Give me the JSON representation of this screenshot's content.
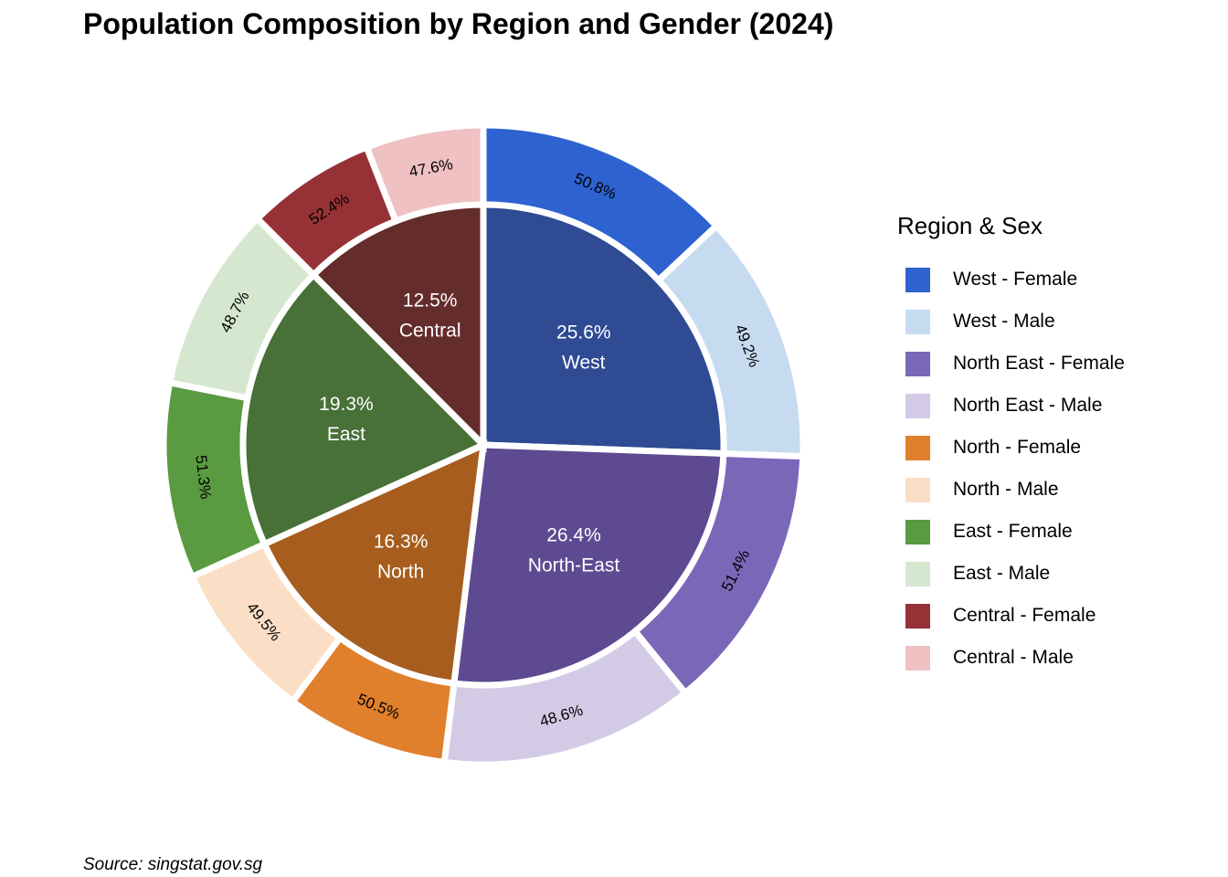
{
  "title": "Population Composition by Region and Gender (2024)",
  "caption": "Source: singstat.gov.sg",
  "chart_data": {
    "type": "pie",
    "subtype": "nested donut (sunburst)",
    "inner": {
      "slices": [
        {
          "region": "West",
          "percent": 25.6,
          "label_pct": "25.6%",
          "label_name": "West",
          "color": "#2E4B94"
        },
        {
          "region": "North-East",
          "percent": 26.4,
          "label_pct": "26.4%",
          "label_name": "North-East",
          "color": "#5E4A91"
        },
        {
          "region": "North",
          "percent": 16.3,
          "label_pct": "16.3%",
          "label_name": "North",
          "color": "#A65D1E"
        },
        {
          "region": "East",
          "percent": 19.3,
          "label_pct": "19.3%",
          "label_name": "East",
          "color": "#477137"
        },
        {
          "region": "Central",
          "percent": 12.5,
          "label_pct": "12.5%",
          "label_name": "Central",
          "color": "#652C2C"
        }
      ]
    },
    "outer": {
      "slices": [
        {
          "series": "West - Female",
          "within_region_percent": 50.8,
          "label": "50.8%",
          "color": "#2E62D1"
        },
        {
          "series": "West - Male",
          "within_region_percent": 49.2,
          "label": "49.2%",
          "color": "#C6DBF0"
        },
        {
          "series": "North East - Female",
          "within_region_percent": 51.4,
          "label": "51.4%",
          "color": "#7A67B8"
        },
        {
          "series": "North East - Male",
          "within_region_percent": 48.6,
          "label": "48.6%",
          "color": "#D3CBE6"
        },
        {
          "series": "North - Female",
          "within_region_percent": 50.5,
          "label": "50.5%",
          "color": "#E07F2C"
        },
        {
          "series": "North - Male",
          "within_region_percent": 49.5,
          "label": "49.5%",
          "color": "#FADFC6"
        },
        {
          "series": "East - Female",
          "within_region_percent": 51.3,
          "label": "51.3%",
          "color": "#5A9A40"
        },
        {
          "series": "East - Male",
          "within_region_percent": 48.7,
          "label": "48.7%",
          "color": "#D5E8CF"
        },
        {
          "series": "Central - Female",
          "within_region_percent": 52.4,
          "label": "52.4%",
          "color": "#963236"
        },
        {
          "series": "Central - Male",
          "within_region_percent": 47.6,
          "label": "47.6%",
          "color": "#EFC1C3"
        }
      ]
    },
    "legend": {
      "title": "Region & Sex",
      "placement": "right",
      "items": [
        {
          "label": "West - Female",
          "color": "#2E62D1"
        },
        {
          "label": "West - Male",
          "color": "#C6DBF0"
        },
        {
          "label": "North East - Female",
          "color": "#7A67B8"
        },
        {
          "label": "North East - Male",
          "color": "#D3CBE6"
        },
        {
          "label": "North - Female",
          "color": "#E07F2C"
        },
        {
          "label": "North - Male",
          "color": "#FADFC6"
        },
        {
          "label": "East - Female",
          "color": "#5A9A40"
        },
        {
          "label": "East - Male",
          "color": "#D5E8CF"
        },
        {
          "label": "Central - Female",
          "color": "#963236"
        },
        {
          "label": "Central - Male",
          "color": "#EFC1C3"
        }
      ]
    },
    "direction": "clockwise",
    "start": "12 o'clock",
    "inner_label_color": "#FFFFFF",
    "outer_label_color": "#000000",
    "gap_color": "#FFFFFF"
  }
}
